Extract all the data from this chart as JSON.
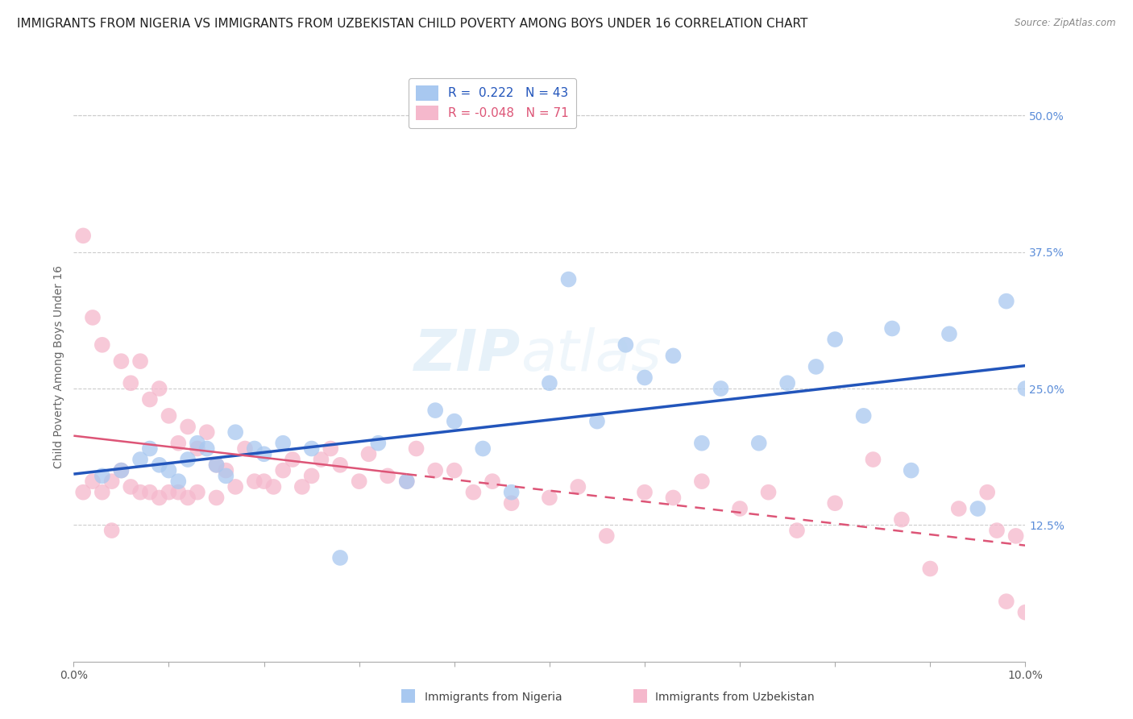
{
  "title": "IMMIGRANTS FROM NIGERIA VS IMMIGRANTS FROM UZBEKISTAN CHILD POVERTY AMONG BOYS UNDER 16 CORRELATION CHART",
  "source": "Source: ZipAtlas.com",
  "ylabel": "Child Poverty Among Boys Under 16",
  "r_nigeria": 0.222,
  "n_nigeria": 43,
  "r_uzbekistan": -0.048,
  "n_uzbekistan": 71,
  "color_nigeria": "#a8c8f0",
  "color_uzbekistan": "#f5b8cc",
  "line_color_nigeria": "#2255bb",
  "line_color_uzbekistan": "#dd5577",
  "xlim": [
    0.0,
    0.1
  ],
  "ylim": [
    0.0,
    0.54
  ],
  "ytick_vals": [
    0.125,
    0.25,
    0.375,
    0.5
  ],
  "ytick_labels": [
    "12.5%",
    "25.0%",
    "37.5%",
    "50.0%"
  ],
  "background_color": "#ffffff",
  "grid_color": "#cccccc",
  "title_fontsize": 11,
  "axis_label_fontsize": 10,
  "tick_fontsize": 10,
  "legend_fontsize": 11,
  "nigeria_x": [
    0.003,
    0.005,
    0.007,
    0.008,
    0.009,
    0.01,
    0.011,
    0.012,
    0.013,
    0.014,
    0.015,
    0.016,
    0.017,
    0.019,
    0.02,
    0.022,
    0.025,
    0.028,
    0.032,
    0.035,
    0.038,
    0.04,
    0.043,
    0.046,
    0.05,
    0.052,
    0.055,
    0.058,
    0.06,
    0.063,
    0.066,
    0.068,
    0.072,
    0.075,
    0.078,
    0.08,
    0.083,
    0.086,
    0.088,
    0.092,
    0.095,
    0.098,
    0.1
  ],
  "nigeria_y": [
    0.17,
    0.175,
    0.185,
    0.195,
    0.18,
    0.175,
    0.165,
    0.185,
    0.2,
    0.195,
    0.18,
    0.17,
    0.21,
    0.195,
    0.19,
    0.2,
    0.195,
    0.095,
    0.2,
    0.165,
    0.23,
    0.22,
    0.195,
    0.155,
    0.255,
    0.35,
    0.22,
    0.29,
    0.26,
    0.28,
    0.2,
    0.25,
    0.2,
    0.255,
    0.27,
    0.295,
    0.225,
    0.305,
    0.175,
    0.3,
    0.14,
    0.33,
    0.25
  ],
  "uzbekistan_x": [
    0.001,
    0.001,
    0.002,
    0.002,
    0.003,
    0.003,
    0.004,
    0.004,
    0.005,
    0.005,
    0.006,
    0.006,
    0.007,
    0.007,
    0.008,
    0.008,
    0.009,
    0.009,
    0.01,
    0.01,
    0.011,
    0.011,
    0.012,
    0.012,
    0.013,
    0.013,
    0.014,
    0.015,
    0.015,
    0.016,
    0.017,
    0.018,
    0.019,
    0.02,
    0.021,
    0.022,
    0.023,
    0.024,
    0.025,
    0.026,
    0.027,
    0.028,
    0.03,
    0.031,
    0.033,
    0.035,
    0.036,
    0.038,
    0.04,
    0.042,
    0.044,
    0.046,
    0.05,
    0.053,
    0.056,
    0.06,
    0.063,
    0.066,
    0.07,
    0.073,
    0.076,
    0.08,
    0.084,
    0.087,
    0.09,
    0.093,
    0.096,
    0.097,
    0.098,
    0.099,
    0.1
  ],
  "uzbekistan_y": [
    0.39,
    0.155,
    0.315,
    0.165,
    0.29,
    0.155,
    0.165,
    0.12,
    0.275,
    0.175,
    0.255,
    0.16,
    0.275,
    0.155,
    0.24,
    0.155,
    0.25,
    0.15,
    0.225,
    0.155,
    0.2,
    0.155,
    0.215,
    0.15,
    0.195,
    0.155,
    0.21,
    0.18,
    0.15,
    0.175,
    0.16,
    0.195,
    0.165,
    0.165,
    0.16,
    0.175,
    0.185,
    0.16,
    0.17,
    0.185,
    0.195,
    0.18,
    0.165,
    0.19,
    0.17,
    0.165,
    0.195,
    0.175,
    0.175,
    0.155,
    0.165,
    0.145,
    0.15,
    0.16,
    0.115,
    0.155,
    0.15,
    0.165,
    0.14,
    0.155,
    0.12,
    0.145,
    0.185,
    0.13,
    0.085,
    0.14,
    0.155,
    0.12,
    0.055,
    0.115,
    0.045
  ]
}
